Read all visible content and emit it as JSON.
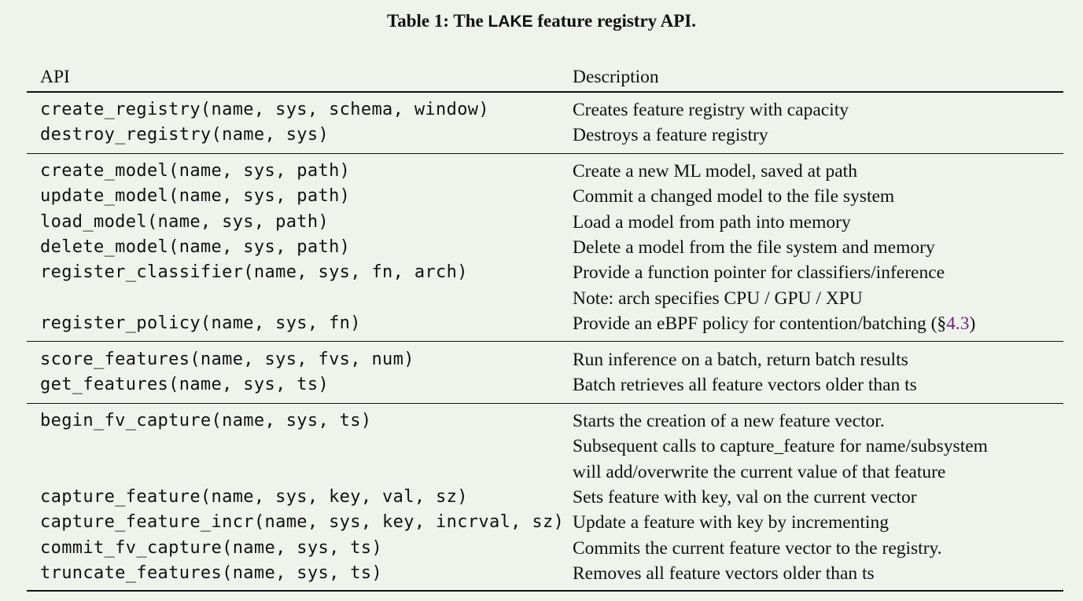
{
  "caption": {
    "prefix": "Table 1: The ",
    "system": "LAKE",
    "suffix": " feature registry API."
  },
  "columns": {
    "api": "API",
    "description": "Description"
  },
  "groups": [
    {
      "rows": [
        {
          "api": "create_registry(name, sys, schema, window)",
          "desc": "Creates feature registry with capacity"
        },
        {
          "api": "destroy_registry(name, sys)",
          "desc": "Destroys a feature registry"
        }
      ]
    },
    {
      "rows": [
        {
          "api": "create_model(name, sys, path)",
          "desc": "Create a new ML model, saved at path"
        },
        {
          "api": "update_model(name, sys, path)",
          "desc": "Commit a changed model to the file system"
        },
        {
          "api": "load_model(name, sys, path)",
          "desc": "Load a model from path into memory"
        },
        {
          "api": "delete_model(name, sys, path)",
          "desc": "Delete a model from the file system and memory"
        },
        {
          "api": "register_classifier(name, sys, fn, arch)",
          "desc": "Provide a function pointer for classifiers/inference"
        },
        {
          "api": "",
          "desc": "Note: arch specifies CPU / GPU / XPU"
        },
        {
          "api": "register_policy(name, sys, fn)",
          "desc": "Provide an eBPF policy for contention/batching (§",
          "ref": "4.3",
          "desc_end": ")"
        }
      ]
    },
    {
      "rows": [
        {
          "api": "score_features(name, sys, fvs, num)",
          "desc": "Run inference on a batch, return batch results"
        },
        {
          "api": "get_features(name, sys, ts)",
          "desc": "Batch retrieves all feature vectors older than ts"
        }
      ]
    },
    {
      "rows": [
        {
          "api": "begin_fv_capture(name, sys, ts)",
          "desc": "Starts the creation of a new feature vector."
        },
        {
          "api": "",
          "desc": "Subsequent calls to capture_feature for name/subsystem"
        },
        {
          "api": "",
          "desc": "will add/overwrite the current value of that feature"
        },
        {
          "api": "capture_feature(name, sys, key, val, sz)",
          "desc": "Sets feature with key, val on the current vector"
        },
        {
          "api": "capture_feature_incr(name, sys, key, incrval, sz)",
          "desc": "Update a feature with key by incrementing"
        },
        {
          "api": "commit_fv_capture(name, sys, ts)",
          "desc": "Commits the current feature vector to the registry."
        },
        {
          "api": "truncate_features(name, sys, ts)",
          "desc": "Removes all feature vectors older than ts"
        }
      ]
    }
  ]
}
